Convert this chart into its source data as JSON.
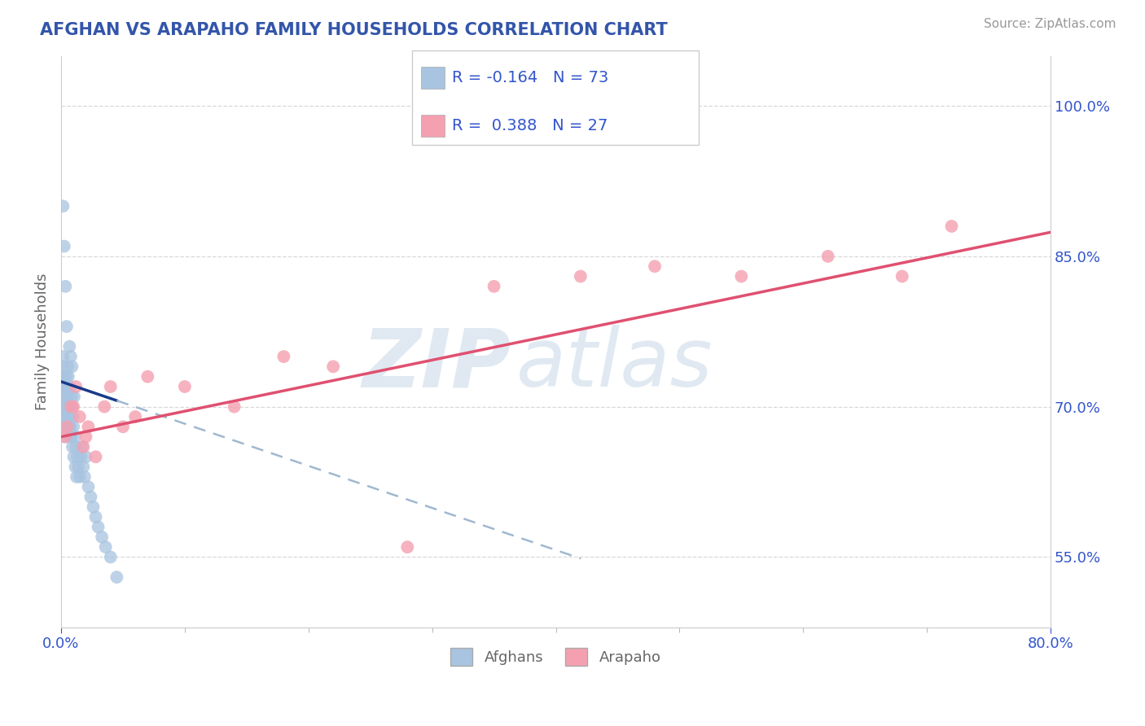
{
  "title": "AFGHAN VS ARAPAHO FAMILY HOUSEHOLDS CORRELATION CHART",
  "source": "Source: ZipAtlas.com",
  "ylabel": "Family Households",
  "xlim": [
    0.0,
    80.0
  ],
  "ylim": [
    48.0,
    105.0
  ],
  "y_tick_vals": [
    55.0,
    70.0,
    85.0,
    100.0
  ],
  "x_tick_vals": [
    0.0,
    80.0
  ],
  "x_tick_labels": [
    "0.0%",
    "80.0%"
  ],
  "y_tick_labels": [
    "55.0%",
    "70.0%",
    "85.0%",
    "100.0%"
  ],
  "legend_r_afghan": "-0.164",
  "legend_n_afghan": "73",
  "legend_r_arapaho": "0.388",
  "legend_n_arapaho": "27",
  "afghan_color": "#a8c4e0",
  "arapaho_color": "#f4a0b0",
  "afghan_line_color": "#1a3a8a",
  "arapaho_line_color": "#e05070",
  "dashed_line_color": "#a0b8d0",
  "watermark": "ZIPatlas",
  "watermark_color": "#c8d8e8",
  "legend_text_color": "#3355cc",
  "title_color": "#3355aa",
  "axis_label_color": "#666666",
  "grid_color": "#d8d8d8",
  "background_color": "#ffffff",
  "afghan_scatter_x": [
    0.05,
    0.08,
    0.1,
    0.12,
    0.14,
    0.16,
    0.18,
    0.2,
    0.22,
    0.24,
    0.26,
    0.28,
    0.3,
    0.32,
    0.34,
    0.36,
    0.38,
    0.4,
    0.42,
    0.44,
    0.46,
    0.48,
    0.5,
    0.55,
    0.6,
    0.65,
    0.7,
    0.75,
    0.8,
    0.85,
    0.9,
    0.95,
    1.0,
    1.1,
    1.2,
    1.3,
    1.4,
    1.5,
    1.6,
    1.7,
    1.8,
    1.9,
    2.0,
    2.2,
    2.4,
    2.6,
    2.8,
    3.0,
    3.3,
    3.6,
    4.0,
    4.5,
    1.05,
    0.52,
    0.62,
    0.72,
    0.82,
    0.92,
    1.02,
    1.15,
    1.25,
    0.15,
    0.25,
    0.35,
    0.45,
    0.55,
    0.68,
    0.78,
    0.88,
    0.58,
    0.48,
    0.38,
    0.28
  ],
  "afghan_scatter_y": [
    72.0,
    71.0,
    73.0,
    74.0,
    75.0,
    72.0,
    71.0,
    73.0,
    70.0,
    72.0,
    68.0,
    71.0,
    69.0,
    70.0,
    68.0,
    67.0,
    72.0,
    71.0,
    70.0,
    73.0,
    69.0,
    68.0,
    70.0,
    71.0,
    69.0,
    70.0,
    72.0,
    68.0,
    67.0,
    71.0,
    70.0,
    69.0,
    68.0,
    67.0,
    66.0,
    65.0,
    64.0,
    63.0,
    65.0,
    66.0,
    64.0,
    63.0,
    65.0,
    62.0,
    61.0,
    60.0,
    59.0,
    58.0,
    57.0,
    56.0,
    55.0,
    53.0,
    71.0,
    70.0,
    69.0,
    68.0,
    67.0,
    66.0,
    65.0,
    64.0,
    63.0,
    90.0,
    86.0,
    82.0,
    78.0,
    74.0,
    76.0,
    75.0,
    74.0,
    73.0,
    72.0,
    71.0,
    70.0
  ],
  "arapaho_scatter_x": [
    0.3,
    0.5,
    0.8,
    1.2,
    1.5,
    1.8,
    2.2,
    2.8,
    3.5,
    5.0,
    7.0,
    10.0,
    14.0,
    18.0,
    22.0,
    28.0,
    35.0,
    42.0,
    48.0,
    55.0,
    62.0,
    68.0,
    72.0,
    1.0,
    2.0,
    4.0,
    6.0
  ],
  "arapaho_scatter_y": [
    67.0,
    68.0,
    70.0,
    72.0,
    69.0,
    66.0,
    68.0,
    65.0,
    70.0,
    68.0,
    73.0,
    72.0,
    70.0,
    75.0,
    74.0,
    56.0,
    82.0,
    83.0,
    84.0,
    83.0,
    85.0,
    83.0,
    88.0,
    70.0,
    67.0,
    72.0,
    69.0
  ],
  "afghan_line_x_start": 0.0,
  "afghan_line_x_solid_end": 4.5,
  "afghan_line_x_dashed_end": 42.0,
  "afghan_line_y_at_0": 72.5,
  "afghan_line_slope": -0.42,
  "arapaho_line_x_start": 0.0,
  "arapaho_line_x_end": 80.0,
  "arapaho_line_y_at_0": 67.0,
  "arapaho_line_slope": 0.255
}
